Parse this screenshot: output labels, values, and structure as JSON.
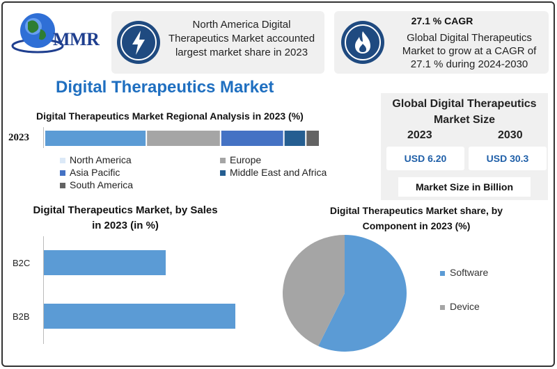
{
  "brand": {
    "logo_text": "MMR"
  },
  "info": {
    "box1_text": "North America Digital Therapeutics Market accounted largest market share in 2023",
    "box2_head": "27.1 % CAGR",
    "box2_text": "Global Digital Therapeutics Market to grow at a CAGR of 27.1 % during 2024-2030"
  },
  "main_title": "Digital Therapeutics Market",
  "market_size": {
    "title": "Global Digital Therapeutics Market Size",
    "year_2023": "2023",
    "year_2030": "2030",
    "value_2023": "USD 6.20",
    "value_2030": "USD 30.3",
    "note": "Market Size in Billion"
  },
  "colors": {
    "north_america": "#5b9bd5",
    "europe": "#a5a5a5",
    "asia_pacific": "#4472c4",
    "mea": "#255e91",
    "south_america": "#636363",
    "icon_bg": "#1f4a80",
    "title_blue": "#1f6fc0"
  },
  "chart_data": [
    {
      "type": "bar",
      "orientation": "horizontal-stacked",
      "title": "Digital Therapeutics Market Regional Analysis in 2023 (%)",
      "categories": [
        "2023"
      ],
      "series": [
        {
          "name": "North America",
          "values": [
            37
          ]
        },
        {
          "name": "Europe",
          "values": [
            27
          ]
        },
        {
          "name": "Asia Pacific",
          "values": [
            23
          ]
        },
        {
          "name": "Middle East and Africa",
          "values": [
            8
          ]
        },
        {
          "name": "South America",
          "values": [
            5
          ]
        }
      ],
      "legend_position": "bottom"
    },
    {
      "type": "bar",
      "orientation": "horizontal",
      "title": "Digital Therapeutics Market, by Sales in 2023 (in %)",
      "categories": [
        "B2C",
        "B2B"
      ],
      "values": [
        35,
        55
      ],
      "xlim": [
        0,
        100
      ]
    },
    {
      "type": "pie",
      "title": "Digital Therapeutics Market share, by Component in 2023  (%)",
      "categories": [
        "Software",
        "Device"
      ],
      "values": [
        57,
        43
      ],
      "legend_position": "right"
    }
  ]
}
